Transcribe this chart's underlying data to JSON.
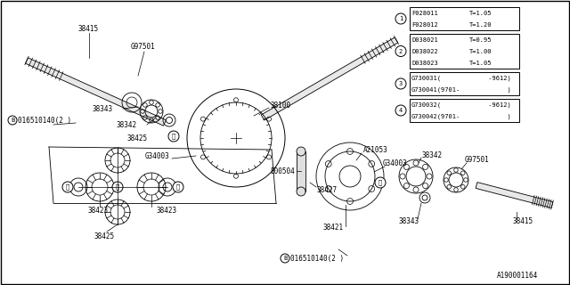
{
  "background_color": "#ffffff",
  "line_color": "#000000",
  "text_color": "#000000",
  "part_number": "A190001164",
  "font_size": 5.5,
  "legend": {
    "group1": {
      "circle": "1",
      "rows": [
        [
          "F028011",
          "T=1.05"
        ],
        [
          "F028012",
          "T=1.20"
        ]
      ]
    },
    "group2": {
      "circle": "2",
      "rows": [
        [
          "D038021",
          "T=0.95"
        ],
        [
          "D038022",
          "T=1.00"
        ],
        [
          "D038023",
          "T=1.05"
        ]
      ]
    },
    "group3": {
      "circle": "3",
      "rows": [
        [
          "G730031(",
          "     -9612)"
        ],
        [
          "G730041(9701-",
          "          )"
        ]
      ]
    },
    "group4": {
      "circle": "4",
      "rows": [
        [
          "G730032(",
          "     -9612)"
        ],
        [
          "G730042(9701-",
          "          )"
        ]
      ]
    }
  }
}
